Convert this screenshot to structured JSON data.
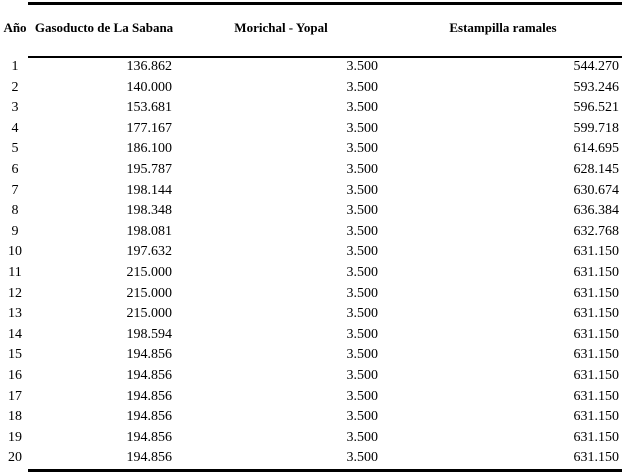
{
  "colors": {
    "text": "#000000",
    "background": "#ffffff",
    "rule": "#000000"
  },
  "table": {
    "columns": [
      {
        "key": "ano",
        "label": "Año"
      },
      {
        "key": "gasoducto",
        "label": "Gasoducto de La Sabana"
      },
      {
        "key": "morichal",
        "label": "Morichal - Yopal"
      },
      {
        "key": "estampilla",
        "label": "Estampilla ramales"
      }
    ],
    "rows": [
      {
        "ano": "1",
        "gasoducto": "136.862",
        "morichal": "3.500",
        "estampilla": "544.270"
      },
      {
        "ano": "2",
        "gasoducto": "140.000",
        "morichal": "3.500",
        "estampilla": "593.246"
      },
      {
        "ano": "3",
        "gasoducto": "153.681",
        "morichal": "3.500",
        "estampilla": "596.521"
      },
      {
        "ano": "4",
        "gasoducto": "177.167",
        "morichal": "3.500",
        "estampilla": "599.718"
      },
      {
        "ano": "5",
        "gasoducto": "186.100",
        "morichal": "3.500",
        "estampilla": "614.695"
      },
      {
        "ano": "6",
        "gasoducto": "195.787",
        "morichal": "3.500",
        "estampilla": "628.145"
      },
      {
        "ano": "7",
        "gasoducto": "198.144",
        "morichal": "3.500",
        "estampilla": "630.674"
      },
      {
        "ano": "8",
        "gasoducto": "198.348",
        "morichal": "3.500",
        "estampilla": "636.384"
      },
      {
        "ano": "9",
        "gasoducto": "198.081",
        "morichal": "3.500",
        "estampilla": "632.768"
      },
      {
        "ano": "10",
        "gasoducto": "197.632",
        "morichal": "3.500",
        "estampilla": "631.150"
      },
      {
        "ano": "11",
        "gasoducto": "215.000",
        "morichal": "3.500",
        "estampilla": "631.150"
      },
      {
        "ano": "12",
        "gasoducto": "215.000",
        "morichal": "3.500",
        "estampilla": "631.150"
      },
      {
        "ano": "13",
        "gasoducto": "215.000",
        "morichal": "3.500",
        "estampilla": "631.150"
      },
      {
        "ano": "14",
        "gasoducto": "198.594",
        "morichal": "3.500",
        "estampilla": "631.150"
      },
      {
        "ano": "15",
        "gasoducto": "194.856",
        "morichal": "3.500",
        "estampilla": "631.150"
      },
      {
        "ano": "16",
        "gasoducto": "194.856",
        "morichal": "3.500",
        "estampilla": "631.150"
      },
      {
        "ano": "17",
        "gasoducto": "194.856",
        "morichal": "3.500",
        "estampilla": "631.150"
      },
      {
        "ano": "18",
        "gasoducto": "194.856",
        "morichal": "3.500",
        "estampilla": "631.150"
      },
      {
        "ano": "19",
        "gasoducto": "194.856",
        "morichal": "3.500",
        "estampilla": "631.150"
      },
      {
        "ano": "20",
        "gasoducto": "194.856",
        "morichal": "3.500",
        "estampilla": "631.150"
      }
    ]
  },
  "chart_data": {
    "type": "table",
    "title": "",
    "columns": [
      "Año",
      "Gasoducto de La Sabana",
      "Morichal - Yopal",
      "Estampilla ramales"
    ],
    "x": [
      1,
      2,
      3,
      4,
      5,
      6,
      7,
      8,
      9,
      10,
      11,
      12,
      13,
      14,
      15,
      16,
      17,
      18,
      19,
      20
    ],
    "series": [
      {
        "name": "Gasoducto de La Sabana",
        "values": [
          136.862,
          140.0,
          153.681,
          177.167,
          186.1,
          195.787,
          198.144,
          198.348,
          198.081,
          197.632,
          215.0,
          215.0,
          215.0,
          198.594,
          194.856,
          194.856,
          194.856,
          194.856,
          194.856,
          194.856
        ]
      },
      {
        "name": "Morichal - Yopal",
        "values": [
          3.5,
          3.5,
          3.5,
          3.5,
          3.5,
          3.5,
          3.5,
          3.5,
          3.5,
          3.5,
          3.5,
          3.5,
          3.5,
          3.5,
          3.5,
          3.5,
          3.5,
          3.5,
          3.5,
          3.5
        ]
      },
      {
        "name": "Estampilla ramales",
        "values": [
          544.27,
          593.246,
          596.521,
          599.718,
          614.695,
          628.145,
          630.674,
          636.384,
          632.768,
          631.15,
          631.15,
          631.15,
          631.15,
          631.15,
          631.15,
          631.15,
          631.15,
          631.15,
          631.15,
          631.15
        ]
      }
    ]
  }
}
